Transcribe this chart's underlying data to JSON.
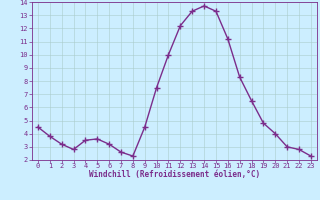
{
  "x": [
    0,
    1,
    2,
    3,
    4,
    5,
    6,
    7,
    8,
    9,
    10,
    11,
    12,
    13,
    14,
    15,
    16,
    17,
    18,
    19,
    20,
    21,
    22,
    23
  ],
  "y": [
    4.5,
    3.8,
    3.2,
    2.8,
    3.5,
    3.6,
    3.2,
    2.6,
    2.3,
    4.5,
    7.5,
    10.0,
    12.2,
    13.3,
    13.7,
    13.3,
    11.2,
    8.3,
    6.5,
    4.8,
    4.0,
    3.0,
    2.8,
    2.3
  ],
  "line_color": "#7B2D8B",
  "marker": "+",
  "marker_size": 4,
  "bg_color": "#cceeff",
  "grid_color": "#aacccc",
  "xlabel": "Windchill (Refroidissement éolien,°C)",
  "xlabel_color": "#7B2D8B",
  "tick_color": "#7B2D8B",
  "xlim": [
    -0.5,
    23.5
  ],
  "ylim": [
    2,
    14
  ],
  "yticks": [
    2,
    3,
    4,
    5,
    6,
    7,
    8,
    9,
    10,
    11,
    12,
    13,
    14
  ],
  "xticks": [
    0,
    1,
    2,
    3,
    4,
    5,
    6,
    7,
    8,
    9,
    10,
    11,
    12,
    13,
    14,
    15,
    16,
    17,
    18,
    19,
    20,
    21,
    22,
    23
  ],
  "spine_color": "#7B2D8B",
  "linewidth": 1.0,
  "markeredgewidth": 1.0
}
